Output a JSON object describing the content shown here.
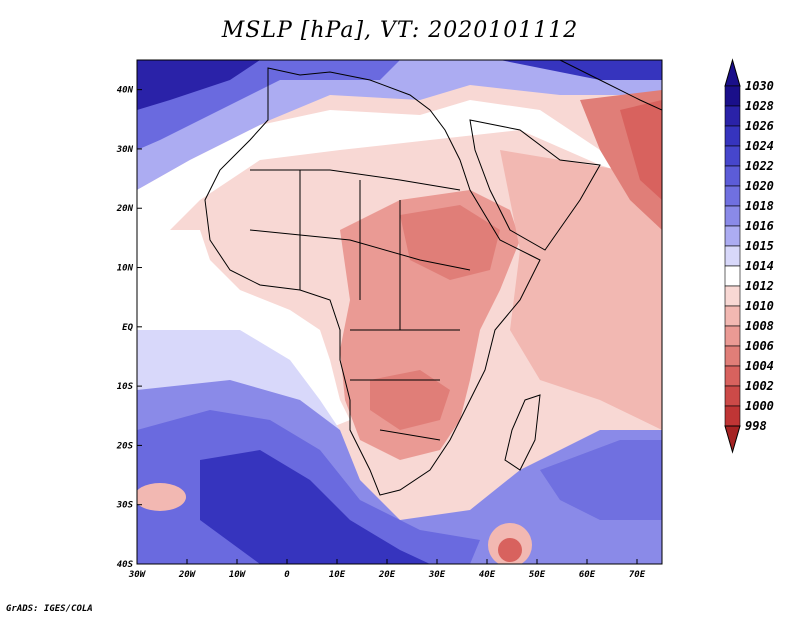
{
  "title": "MSLP [hPa], VT: 2020101112",
  "credit": "GrADS: IGES/COLA",
  "map": {
    "lon_labels": [
      "30W",
      "20W",
      "10W",
      "0",
      "10E",
      "20E",
      "30E",
      "40E",
      "50E",
      "60E",
      "70E"
    ],
    "lat_labels": [
      "40N",
      "30N",
      "20N",
      "10N",
      "EQ",
      "10S",
      "20S",
      "30S",
      "40S"
    ],
    "lon_range": [
      -30,
      75
    ],
    "lat_range": [
      -40,
      45
    ]
  },
  "colorbar": {
    "unit": "hPa",
    "levels": [
      "1030",
      "1028",
      "1026",
      "1024",
      "1022",
      "1020",
      "1018",
      "1016",
      "1015",
      "1014",
      "1012",
      "1010",
      "1008",
      "1006",
      "1004",
      "1002",
      "1000",
      "998"
    ],
    "colors": [
      "#1a0f8a",
      "#2a22a8",
      "#3634be",
      "#4646cc",
      "#5c5cd8",
      "#7070e0",
      "#8a8ae8",
      "#acacf2",
      "#d8d8fa",
      "#ffffff",
      "#f8d8d4",
      "#f2b8b2",
      "#ea9a94",
      "#e07e78",
      "#d8625e",
      "#cc4a48",
      "#bf3535",
      "#a52323"
    ]
  }
}
